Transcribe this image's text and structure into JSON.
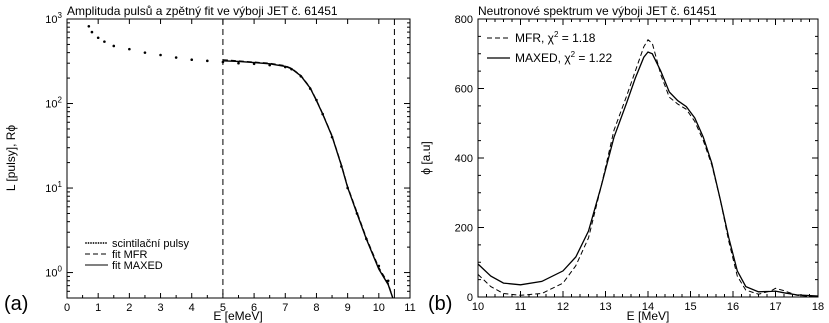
{
  "panel_labels": {
    "left": "(a)",
    "right": "(b)"
  },
  "chart_data": [
    {
      "type": "scatter",
      "title": "Amplituda pulsů a zpětný fit ve výboji JET č. 61451",
      "xlabel": "E [eMeV]",
      "ylabel": "L [pulsy], Rϕ",
      "xlim": [
        0,
        11
      ],
      "ylim": [
        0.5,
        1000
      ],
      "yscale": "log",
      "xticks": [
        "0",
        "1",
        "2",
        "3",
        "4",
        "5",
        "6",
        "7",
        "8",
        "9",
        "10",
        "11"
      ],
      "yticks": [
        {
          "base": "10",
          "exp": "0",
          "value": 1
        },
        {
          "base": "10",
          "exp": "1",
          "value": 10
        },
        {
          "base": "10",
          "exp": "2",
          "value": 100
        },
        {
          "base": "10",
          "exp": "3",
          "value": 1000
        }
      ],
      "vlines": [
        5.0,
        10.5
      ],
      "legend_position": "bottom-left",
      "grid": false,
      "series": [
        {
          "name": "scintilační pulsy",
          "style": "dots",
          "color": "#000000",
          "x": [
            0.7,
            0.8,
            1.0,
            1.2,
            1.5,
            2.0,
            2.5,
            3.0,
            3.5,
            4.0,
            4.5,
            5.0,
            5.5,
            6.0,
            6.5,
            7.0,
            7.2,
            7.5,
            7.8,
            8.0,
            8.2,
            8.5,
            8.8,
            9.0,
            9.3,
            9.6,
            10.0,
            10.3
          ],
          "y": [
            820,
            700,
            600,
            540,
            480,
            440,
            400,
            375,
            350,
            330,
            320,
            310,
            300,
            295,
            285,
            270,
            255,
            210,
            150,
            110,
            75,
            40,
            18,
            10,
            5,
            2.5,
            1.2,
            0.8
          ]
        },
        {
          "name": "fit MFR",
          "style": "dashed",
          "color": "#000000",
          "x": [
            5.0,
            5.5,
            6.0,
            6.5,
            7.0,
            7.2,
            7.5,
            7.8,
            8.0,
            8.2,
            8.5,
            8.8,
            9.0,
            9.3,
            9.6,
            10.0,
            10.3,
            10.45
          ],
          "y": [
            330,
            320,
            310,
            300,
            280,
            262,
            215,
            155,
            110,
            76,
            42,
            19,
            10.5,
            5.2,
            2.6,
            1.15,
            0.75,
            0.5
          ]
        },
        {
          "name": "fit MAXED",
          "style": "solid",
          "color": "#000000",
          "x": [
            5.0,
            5.5,
            6.0,
            6.5,
            7.0,
            7.2,
            7.5,
            7.8,
            8.0,
            8.2,
            8.5,
            8.8,
            9.0,
            9.3,
            9.6,
            10.0,
            10.3,
            10.45
          ],
          "y": [
            320,
            315,
            305,
            295,
            275,
            258,
            212,
            152,
            108,
            75,
            41,
            18.5,
            10.2,
            5.0,
            2.5,
            1.1,
            0.72,
            0.5
          ]
        }
      ]
    },
    {
      "type": "line",
      "title": "Neutronové spektrum ve výboji JET č. 61451",
      "xlabel": "E [MeV]",
      "ylabel": "ϕ [a.u]",
      "xlim": [
        10,
        18
      ],
      "ylim": [
        0,
        800
      ],
      "xticks": [
        "10",
        "11",
        "12",
        "13",
        "14",
        "15",
        "16",
        "17",
        "18"
      ],
      "yticks": [
        "0",
        "200",
        "400",
        "600",
        "800"
      ],
      "legend_position": "top-left",
      "grid": false,
      "series": [
        {
          "name": "MFR",
          "chi_label": "χ",
          "chi_exp": "2",
          "chi_value": " = 1.18",
          "style": "dashed",
          "color": "#000000",
          "x": [
            10.0,
            10.3,
            10.6,
            11.0,
            11.5,
            12.0,
            12.3,
            12.6,
            12.9,
            13.2,
            13.5,
            13.7,
            13.9,
            14.0,
            14.1,
            14.3,
            14.5,
            14.7,
            14.9,
            15.1,
            15.3,
            15.5,
            15.7,
            15.9,
            16.1,
            16.3,
            16.6,
            16.9,
            17.0,
            17.2,
            17.5,
            18.0
          ],
          "y": [
            65,
            30,
            10,
            5,
            10,
            40,
            90,
            170,
            320,
            480,
            580,
            650,
            720,
            740,
            730,
            640,
            575,
            555,
            540,
            505,
            450,
            380,
            280,
            160,
            60,
            20,
            8,
            18,
            25,
            18,
            5,
            0
          ]
        },
        {
          "name": "MAXED",
          "chi_label": "χ",
          "chi_exp": "2",
          "chi_value": " = 1.22",
          "style": "solid",
          "color": "#000000",
          "x": [
            10.0,
            10.3,
            10.6,
            11.0,
            11.5,
            12.0,
            12.3,
            12.6,
            12.9,
            13.2,
            13.5,
            13.7,
            13.9,
            14.0,
            14.1,
            14.3,
            14.5,
            14.7,
            14.9,
            15.1,
            15.3,
            15.5,
            15.7,
            15.9,
            16.1,
            16.3,
            16.6,
            16.9,
            17.0,
            17.2,
            17.5,
            18.0
          ],
          "y": [
            95,
            60,
            40,
            35,
            45,
            75,
            115,
            190,
            320,
            460,
            560,
            630,
            690,
            705,
            700,
            650,
            590,
            565,
            548,
            515,
            460,
            385,
            280,
            170,
            75,
            30,
            15,
            16,
            17,
            12,
            6,
            3
          ]
        }
      ]
    }
  ]
}
